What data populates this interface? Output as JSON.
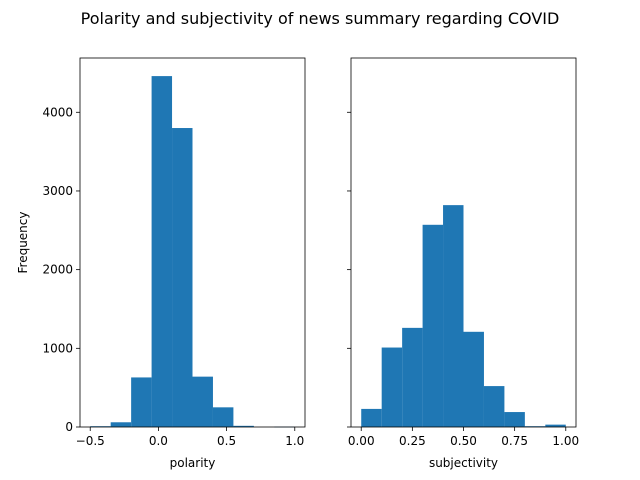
{
  "figure": {
    "title": "Polarity and subjectivity of news summary regarding COVID"
  },
  "chart_data": [
    {
      "type": "bar",
      "subtype": "histogram",
      "xlabel": "polarity",
      "ylabel": "Frequency",
      "color": "#1f77b4",
      "xlim": [
        -0.575,
        1.075
      ],
      "ylim": [
        0,
        4690
      ],
      "xticks": [
        -0.5,
        0.0,
        0.5,
        1.0
      ],
      "xtick_labels": [
        "−0.5",
        "0.0",
        "0.5",
        "1.0"
      ],
      "yticks": [
        0,
        1000,
        2000,
        3000,
        4000
      ],
      "ytick_labels": [
        "0",
        "1000",
        "2000",
        "3000",
        "4000"
      ],
      "bin_edges": [
        -0.5,
        -0.35,
        -0.2,
        -0.05,
        0.1,
        0.25,
        0.4,
        0.55,
        0.7,
        0.85,
        1.0
      ],
      "values": [
        10,
        60,
        630,
        4460,
        3800,
        640,
        250,
        15,
        0,
        3
      ]
    },
    {
      "type": "bar",
      "subtype": "histogram",
      "xlabel": "subjectivity",
      "ylabel": "",
      "color": "#1f77b4",
      "xlim": [
        -0.05,
        1.05
      ],
      "ylim": [
        0,
        4690
      ],
      "xticks": [
        0.0,
        0.25,
        0.5,
        0.75,
        1.0
      ],
      "xtick_labels": [
        "0.00",
        "0.25",
        "0.50",
        "0.75",
        "1.00"
      ],
      "yticks": [
        0,
        1000,
        2000,
        3000,
        4000
      ],
      "ytick_labels": [],
      "bin_edges": [
        0.0,
        0.1,
        0.2,
        0.3,
        0.4,
        0.5,
        0.6,
        0.7,
        0.8,
        0.9,
        1.0
      ],
      "values": [
        230,
        1010,
        1260,
        2570,
        2820,
        1210,
        520,
        190,
        10,
        30
      ]
    }
  ]
}
